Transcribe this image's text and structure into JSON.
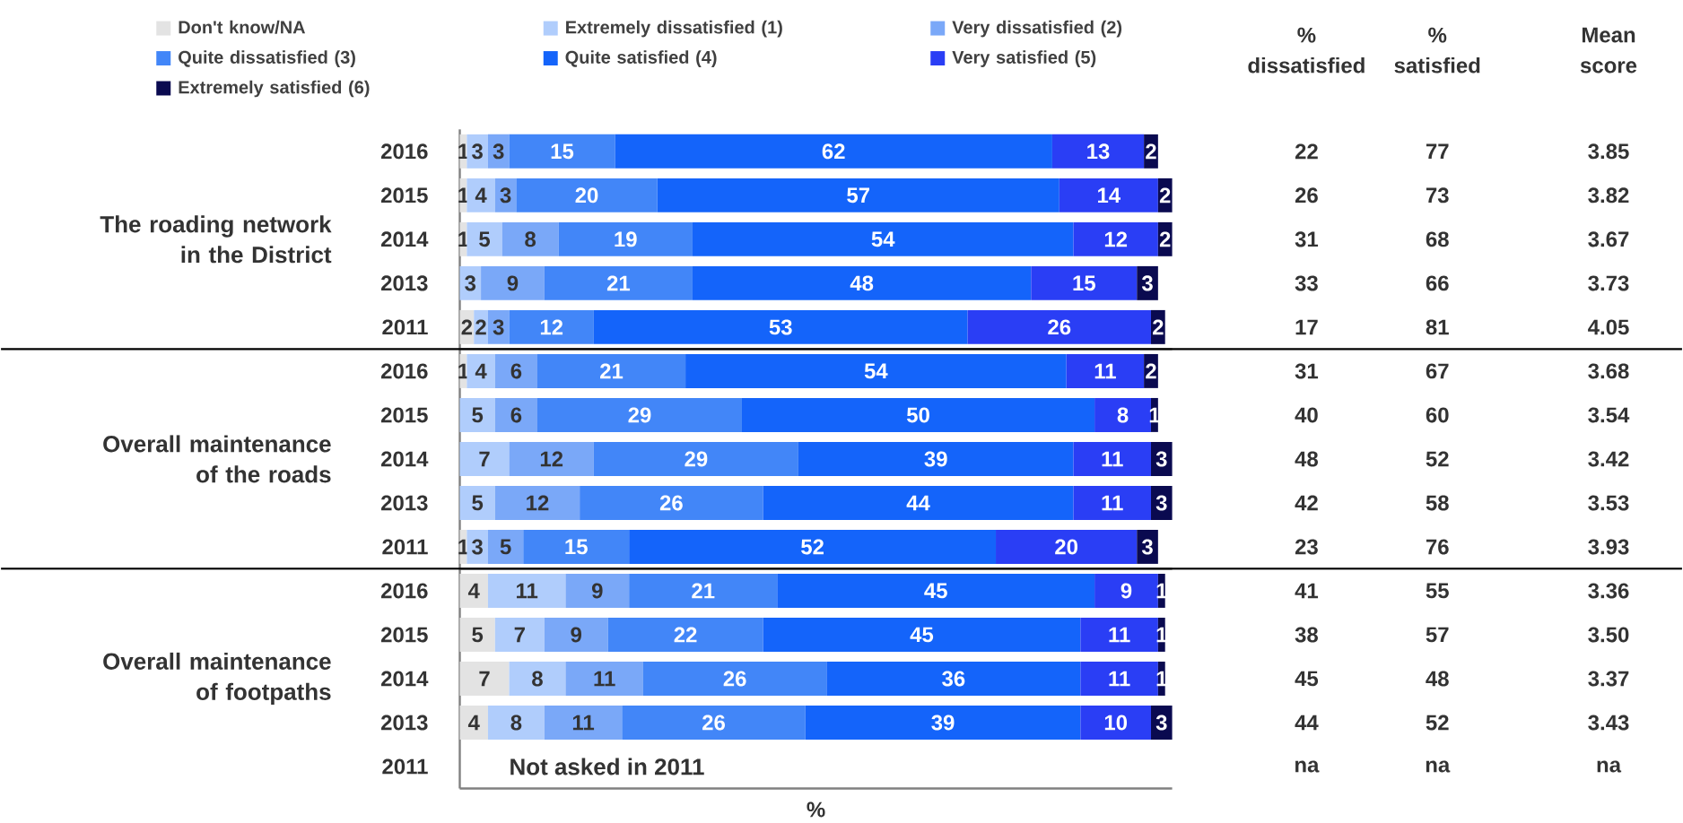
{
  "chart_data": [
    {
      "type": "bar",
      "orientation": "horizontal",
      "stacked": true,
      "data_labels": true,
      "tick_labels": "y",
      "legend": "top",
      "ylabel": "The roading network in the District",
      "categories": [
        "2016",
        "2015",
        "2014",
        "2013",
        "2011"
      ],
      "series": [
        {
          "name": "Don't know/NA",
          "color": "#e3e3e3",
          "values": [
            1,
            1,
            1,
            null,
            2
          ]
        },
        {
          "name": "Extremely dissatisfied (1)",
          "color": "#b0cdfc",
          "values": [
            3,
            4,
            5,
            3,
            2
          ]
        },
        {
          "name": "Very dissatisfied (2)",
          "color": "#7aa8f8",
          "values": [
            3,
            3,
            8,
            9,
            3
          ]
        },
        {
          "name": "Quite dissatisfied (3)",
          "color": "#4286f8",
          "values": [
            15,
            20,
            19,
            21,
            12
          ]
        },
        {
          "name": "Quite satisfied (4)",
          "color": "#1464fa",
          "values": [
            62,
            57,
            54,
            48,
            53
          ]
        },
        {
          "name": "Very satisfied (5)",
          "color": "#2a3ef5",
          "values": [
            13,
            14,
            12,
            15,
            26
          ]
        },
        {
          "name": "Extremely satisfied (6)",
          "color": "#0a0a50",
          "values": [
            2,
            2,
            2,
            3,
            2
          ]
        }
      ]
    },
    {
      "type": "bar",
      "orientation": "horizontal",
      "stacked": true,
      "data_labels": true,
      "tick_labels": "y",
      "ylabel": "Overall maintenance of the roads",
      "categories": [
        "2016",
        "2015",
        "2014",
        "2013",
        "2011"
      ],
      "series": [
        {
          "color": "#e3e3e3",
          "values": [
            1,
            null,
            null,
            null,
            1
          ]
        },
        {
          "color": "#b0cdfc",
          "values": [
            4,
            5,
            7,
            5,
            3
          ]
        },
        {
          "color": "#7aa8f8",
          "values": [
            6,
            6,
            12,
            12,
            5
          ]
        },
        {
          "color": "#4286f8",
          "values": [
            21,
            29,
            29,
            26,
            15
          ]
        },
        {
          "color": "#1464fa",
          "values": [
            54,
            50,
            39,
            44,
            52
          ]
        },
        {
          "color": "#2a3ef5",
          "values": [
            11,
            8,
            11,
            11,
            20
          ]
        },
        {
          "color": "#0a0a50",
          "values": [
            2,
            1,
            3,
            3,
            3
          ]
        }
      ]
    },
    {
      "type": "bar",
      "orientation": "horizontal",
      "stacked": true,
      "data_labels": true,
      "tick_labels": "y",
      "ylabel": "Overall maintenance of footpaths",
      "xlabel": "%",
      "categories": [
        "2016",
        "2015",
        "2014",
        "2013",
        "2011"
      ],
      "annotations": [
        "Not asked in 2011"
      ],
      "series": [
        {
          "color": "#e3e3e3",
          "values": [
            4,
            5,
            7,
            4,
            null
          ]
        },
        {
          "color": "#b0cdfc",
          "values": [
            11,
            7,
            8,
            8,
            null
          ]
        },
        {
          "color": "#7aa8f8",
          "values": [
            9,
            9,
            11,
            11,
            null
          ]
        },
        {
          "color": "#4286f8",
          "values": [
            21,
            22,
            26,
            26,
            null
          ]
        },
        {
          "color": "#1464fa",
          "values": [
            45,
            45,
            36,
            39,
            null
          ]
        },
        {
          "color": "#2a3ef5",
          "values": [
            9,
            11,
            11,
            10,
            null
          ]
        },
        {
          "color": "#0a0a50",
          "values": [
            1,
            1,
            1,
            3,
            null
          ]
        }
      ]
    },
    {
      "type": "other",
      "categories": [
        "% dissatisfied",
        "% satisfied",
        "Mean score"
      ],
      "annotations": [
        "22",
        "77",
        "3.85",
        "26",
        "73",
        "3.82",
        "31",
        "68",
        "3.67",
        "33",
        "66",
        "3.73",
        "17",
        "81",
        "4.05",
        "31",
        "67",
        "3.68",
        "40",
        "60",
        "3.54",
        "48",
        "52",
        "3.42",
        "42",
        "58",
        "3.53",
        "23",
        "76",
        "3.93",
        "41",
        "55",
        "3.36",
        "38",
        "57",
        "3.50",
        "45",
        "48",
        "3.37",
        "44",
        "52",
        "3.43",
        "na",
        "na",
        "na"
      ]
    }
  ]
}
